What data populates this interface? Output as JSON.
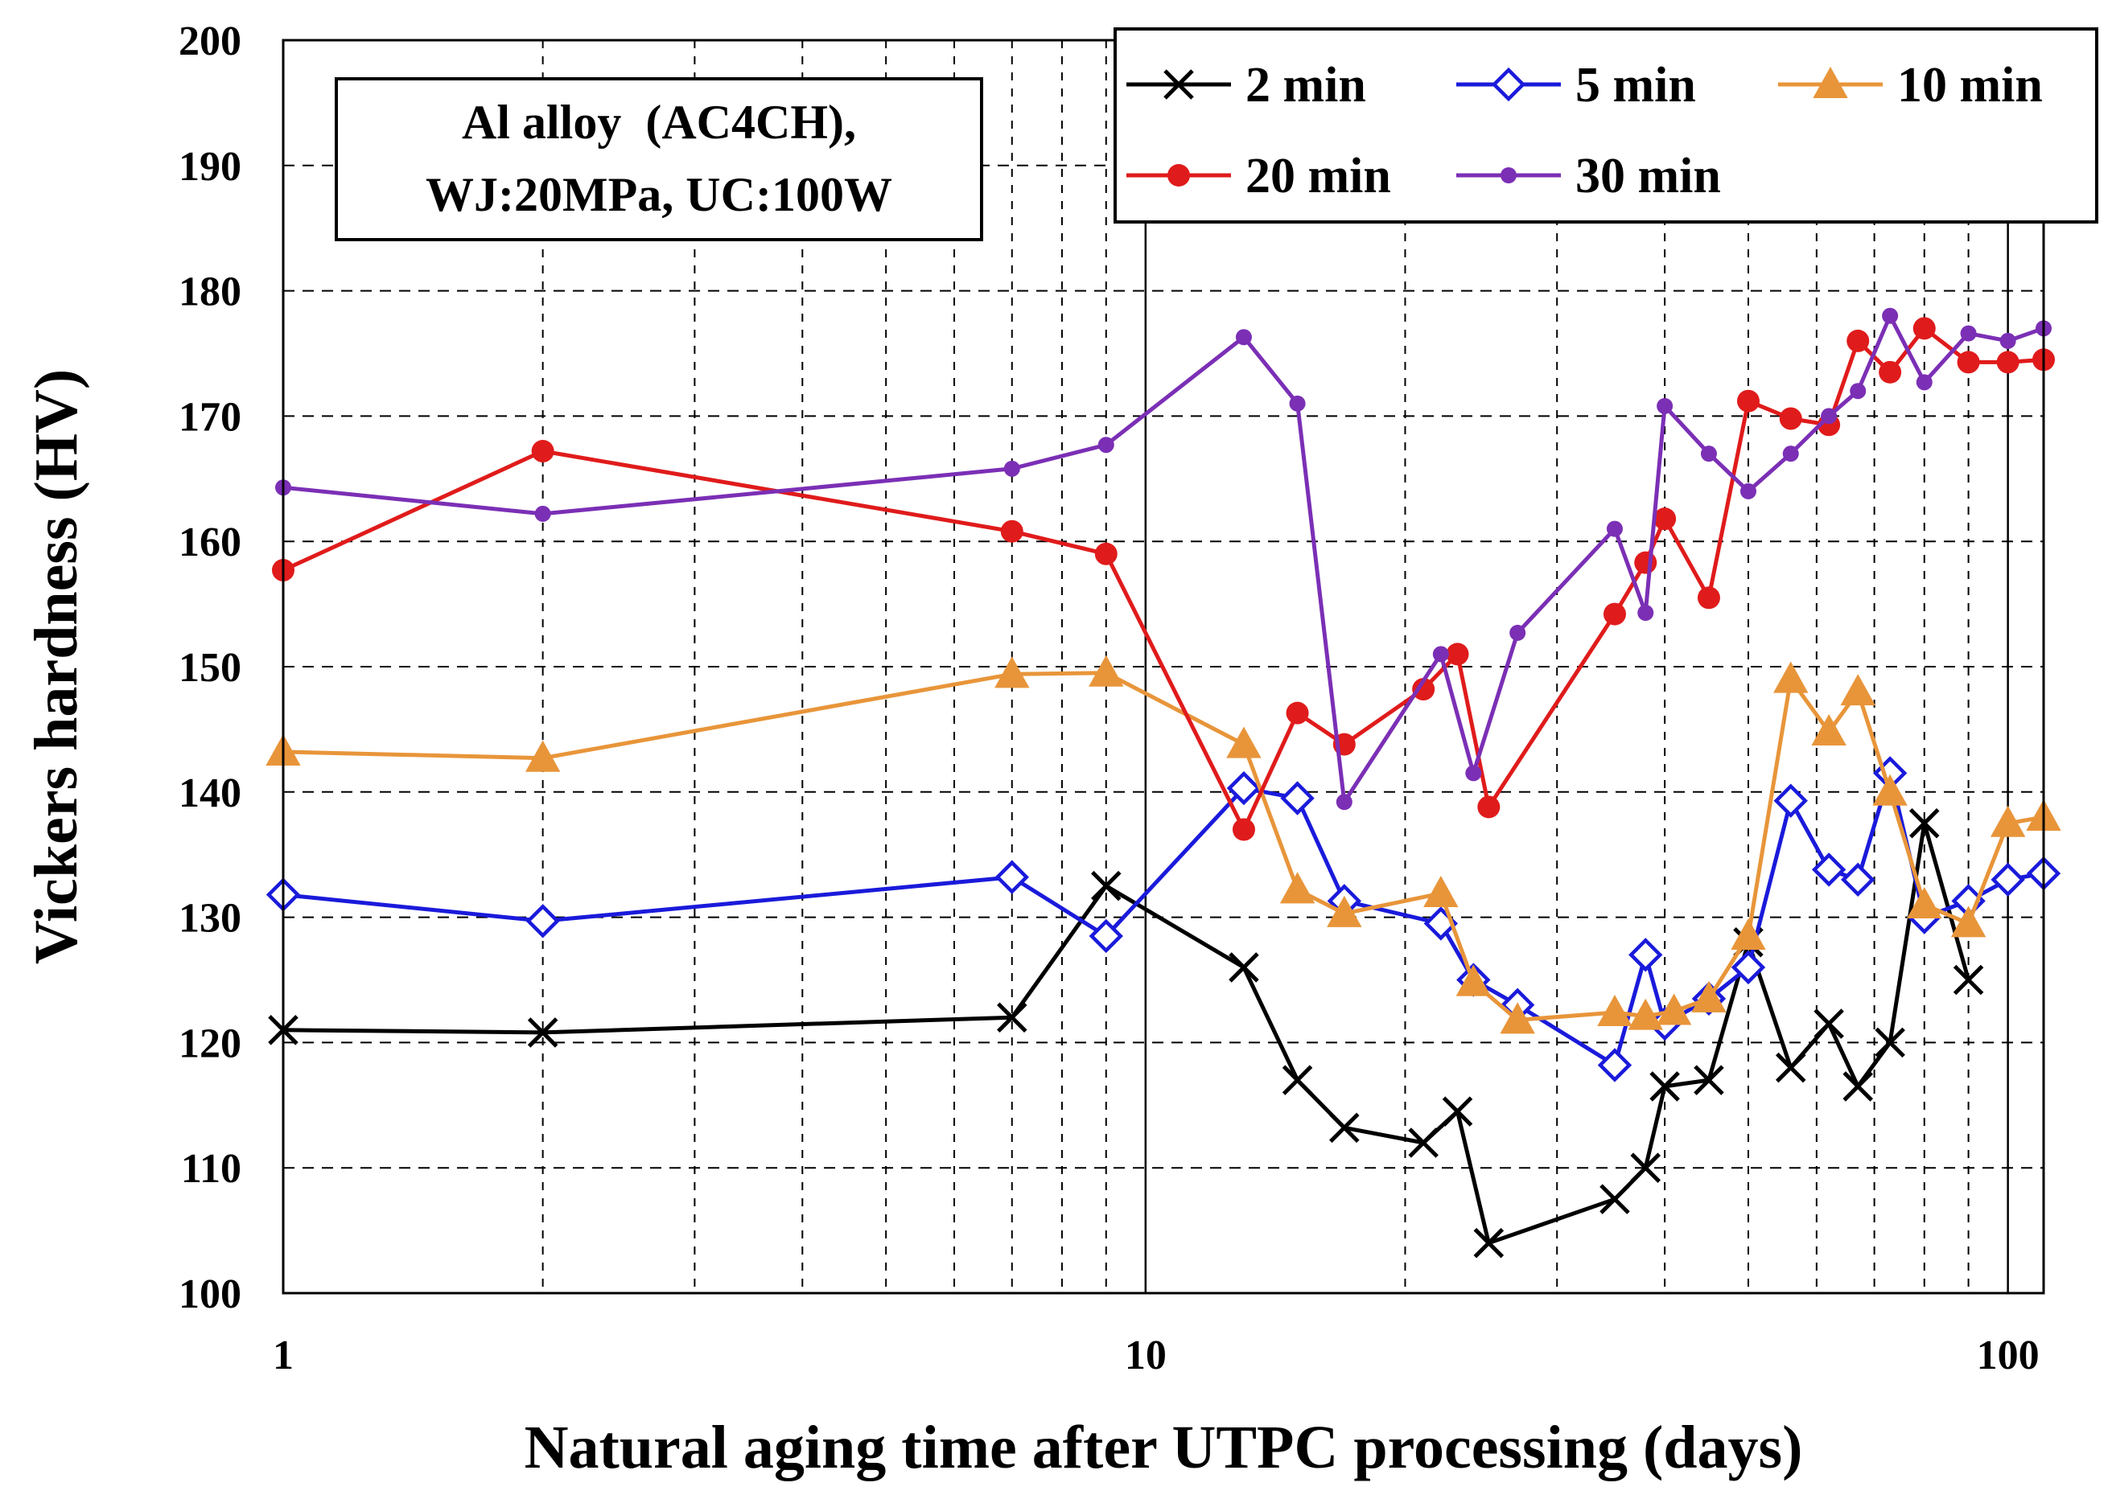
{
  "chart_data": {
    "type": "line",
    "title": "",
    "xlabel": "Natural aging time after UTPC processing (days)",
    "ylabel": "Vickers hardness (HV)",
    "xscale": "log",
    "xlim": [
      1,
      110
    ],
    "ylim": [
      100,
      200
    ],
    "xticks": [
      "1",
      "10",
      "100"
    ],
    "yticks": [
      "100",
      "110",
      "120",
      "130",
      "140",
      "150",
      "160",
      "170",
      "180",
      "190",
      "200"
    ],
    "grid": true,
    "legend_position": "top-right",
    "annotation": {
      "line1": "Al alloy  (AC4CH),",
      "line2": "WJ:20MPa, UC:100W"
    },
    "series": [
      {
        "name": "2 min",
        "color": "#000000",
        "marker": "x",
        "x": [
          1,
          2,
          7,
          9,
          13,
          15,
          17,
          21,
          23,
          25,
          35,
          38,
          40,
          45,
          50,
          56,
          62,
          67,
          73,
          80,
          90
        ],
        "y": [
          121,
          120.8,
          122,
          132.5,
          126,
          117,
          113.2,
          112,
          114.5,
          104,
          107.5,
          110,
          116.5,
          117,
          128,
          118,
          121.5,
          116.5,
          120,
          137.5,
          125
        ]
      },
      {
        "name": "5 min",
        "color": "#1a1adb",
        "marker": "diamond-open",
        "x": [
          1,
          2,
          7,
          9,
          13,
          15,
          17,
          22,
          24,
          27,
          35,
          38,
          40,
          45,
          50,
          56,
          62,
          67,
          73,
          80,
          90,
          100,
          110
        ],
        "y": [
          131.8,
          129.7,
          133.2,
          128.5,
          140.3,
          139.5,
          131.3,
          129.5,
          125,
          123,
          118.2,
          127,
          121.5,
          123.5,
          126,
          139.3,
          133.8,
          133,
          141.5,
          130,
          131.3,
          133,
          133.5
        ]
      },
      {
        "name": "10 min",
        "color": "#e8953a",
        "marker": "triangle",
        "x": [
          1,
          2,
          7,
          9,
          13,
          15,
          17,
          22,
          24,
          27,
          35,
          38,
          41,
          45,
          50,
          56,
          62,
          67,
          73,
          80,
          90,
          100,
          110
        ],
        "y": [
          143.2,
          142.7,
          149.4,
          149.5,
          143.8,
          132.2,
          130.3,
          131.9,
          124.8,
          121.8,
          122.4,
          122.1,
          122.5,
          123.5,
          128.5,
          149,
          144.8,
          148,
          140,
          131,
          129.5,
          137.5,
          138
        ]
      },
      {
        "name": "20 min",
        "color": "#e01b1b",
        "marker": "circle",
        "x": [
          1,
          2,
          7,
          9,
          13,
          15,
          17,
          21,
          23,
          25,
          35,
          38,
          40,
          45,
          50,
          56,
          62,
          67,
          73,
          80,
          90,
          100,
          110
        ],
        "y": [
          157.7,
          167.2,
          160.8,
          159,
          137,
          146.3,
          143.8,
          148.2,
          151,
          138.8,
          154.2,
          158.3,
          161.8,
          155.5,
          171.2,
          169.8,
          169.3,
          176,
          173.5,
          177,
          174.3,
          174.3,
          174.5
        ]
      },
      {
        "name": "30 min",
        "color": "#7b2fb5",
        "marker": "small-circle",
        "x": [
          1,
          2,
          7,
          9,
          13,
          15,
          17,
          22,
          24,
          27,
          35,
          38,
          40,
          45,
          50,
          56,
          62,
          67,
          73,
          80,
          90,
          100,
          110
        ],
        "y": [
          164.3,
          162.2,
          165.8,
          167.7,
          176.3,
          171,
          139.2,
          151,
          141.5,
          152.7,
          161,
          154.3,
          170.8,
          167,
          164,
          167,
          170,
          172,
          178,
          172.7,
          176.6,
          176,
          177
        ]
      }
    ]
  }
}
